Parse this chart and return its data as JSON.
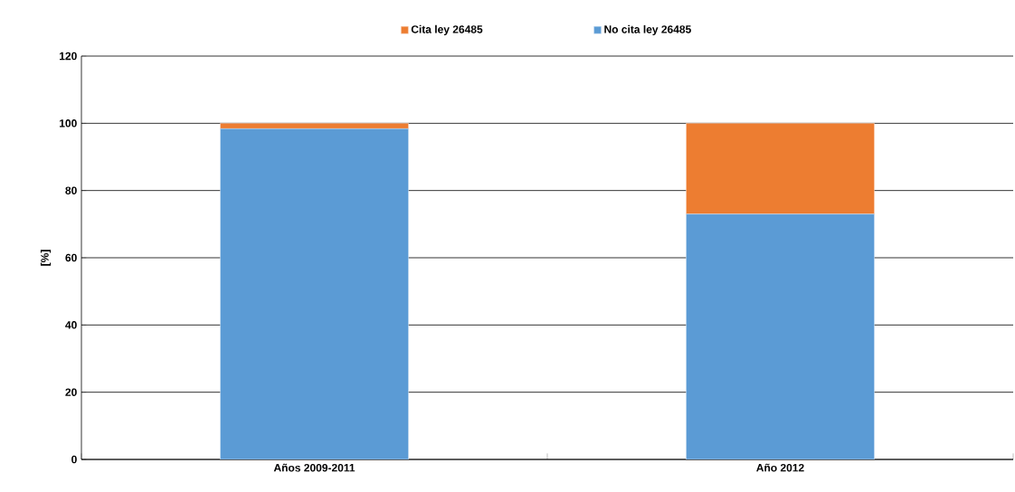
{
  "chart_data": {
    "type": "bar",
    "stacked": true,
    "ylabel": "[%]",
    "categories": [
      "Años 2009-2011",
      "Año 2012"
    ],
    "series": [
      {
        "name": "No cita ley 26485",
        "color": "#5b9bd5",
        "values": [
          98.4,
          73
        ]
      },
      {
        "name": "Cita ley 26485",
        "color": "#ed7d31",
        "values": [
          1.6,
          27
        ]
      }
    ],
    "ylim": [
      0,
      120
    ],
    "yticks": [
      0,
      20,
      40,
      60,
      80,
      100,
      120
    ],
    "grid": "y",
    "legend": "top"
  }
}
